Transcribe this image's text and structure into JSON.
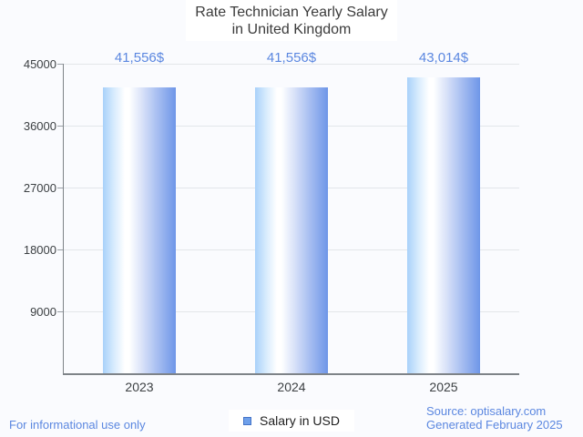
{
  "title": {
    "line1": "Rate Technician Yearly Salary",
    "line2": "in United Kingdom"
  },
  "chart_data": {
    "type": "bar",
    "title": "Rate Technician Yearly Salary in United Kingdom",
    "categories": [
      "2023",
      "2024",
      "2025"
    ],
    "series": [
      {
        "name": "Salary in USD",
        "values": [
          41556,
          41556,
          43014
        ]
      }
    ],
    "bar_labels": [
      "41,556$",
      "41,556$",
      "43,014$"
    ],
    "ylim": [
      0,
      45000
    ],
    "yticks": [
      45000,
      36000,
      27000,
      18000,
      9000
    ],
    "ytick_labels": [
      "45000",
      "36000",
      "27000",
      "18000",
      "9000"
    ],
    "grid": true,
    "legend_position": "bottom"
  },
  "legend": {
    "label": "Salary in USD"
  },
  "footer": {
    "left": "For informational use only",
    "source": "Source: optisalary.com",
    "generated": "Generated February 2025"
  },
  "colors": {
    "background": "#FAFBFE",
    "accent_blue": "#5B87E0",
    "grid_color": "#E3E6EA",
    "axis_color": "#7E8388",
    "text_dark": "#3C4043",
    "bar_gradient_left": "#A8D1FA",
    "bar_gradient_right": "#6E96E8",
    "legend_swatch_fill": "#6FA0EA",
    "legend_swatch_border": "#4474C8"
  }
}
